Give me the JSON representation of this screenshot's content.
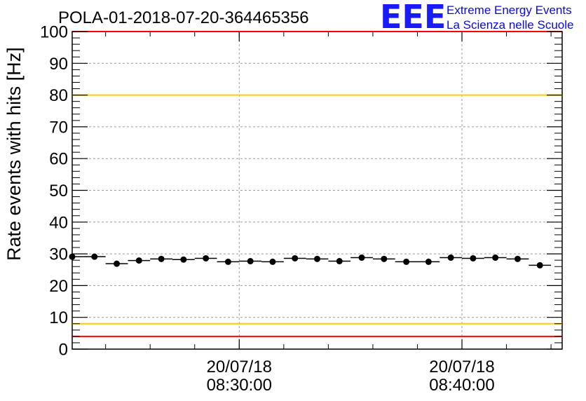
{
  "chart_data": {
    "type": "scatter",
    "title": "POLA-01-2018-07-20-364465356",
    "ylabel": "Rate events with hits [Hz]",
    "xlabel": "",
    "ylim": [
      0,
      100
    ],
    "y_ticks": [
      "0",
      "10",
      "20",
      "30",
      "40",
      "50",
      "60",
      "70",
      "80",
      "90",
      "100"
    ],
    "x_range_minutes": [
      "08:22:30",
      "08:44:30"
    ],
    "x_ticks": [
      {
        "date": "20/07/18",
        "time": "08:30:00"
      },
      {
        "date": "20/07/18",
        "time": "08:40:00"
      }
    ],
    "grid": true,
    "reference_lines": [
      {
        "y": 100,
        "color": "#ff0000"
      },
      {
        "y": 80,
        "color": "#ffcc00"
      },
      {
        "y": 8,
        "color": "#ffcc00"
      },
      {
        "y": 4,
        "color": "#ff0000"
      }
    ],
    "x": [
      "08:22:30",
      "08:23:30",
      "08:24:30",
      "08:25:30",
      "08:26:30",
      "08:27:30",
      "08:28:30",
      "08:29:30",
      "08:30:30",
      "08:31:30",
      "08:32:30",
      "08:33:30",
      "08:34:30",
      "08:35:30",
      "08:36:30",
      "08:37:30",
      "08:38:30",
      "08:39:30",
      "08:40:30",
      "08:41:30",
      "08:42:30",
      "08:43:30"
    ],
    "bin_width_minutes": 1,
    "values": [
      29.1,
      29.1,
      26.9,
      27.9,
      28.4,
      28.2,
      28.6,
      27.5,
      27.7,
      27.5,
      28.6,
      28.4,
      27.7,
      28.8,
      28.4,
      27.5,
      27.5,
      28.8,
      28.6,
      28.8,
      28.4,
      26.4
    ],
    "marker_color": "#000000"
  },
  "logo": {
    "letters": "EEE",
    "line1": "Extreme Energy Events",
    "line2": "La Scienza nelle Scuole",
    "color": "#1a1aff"
  }
}
